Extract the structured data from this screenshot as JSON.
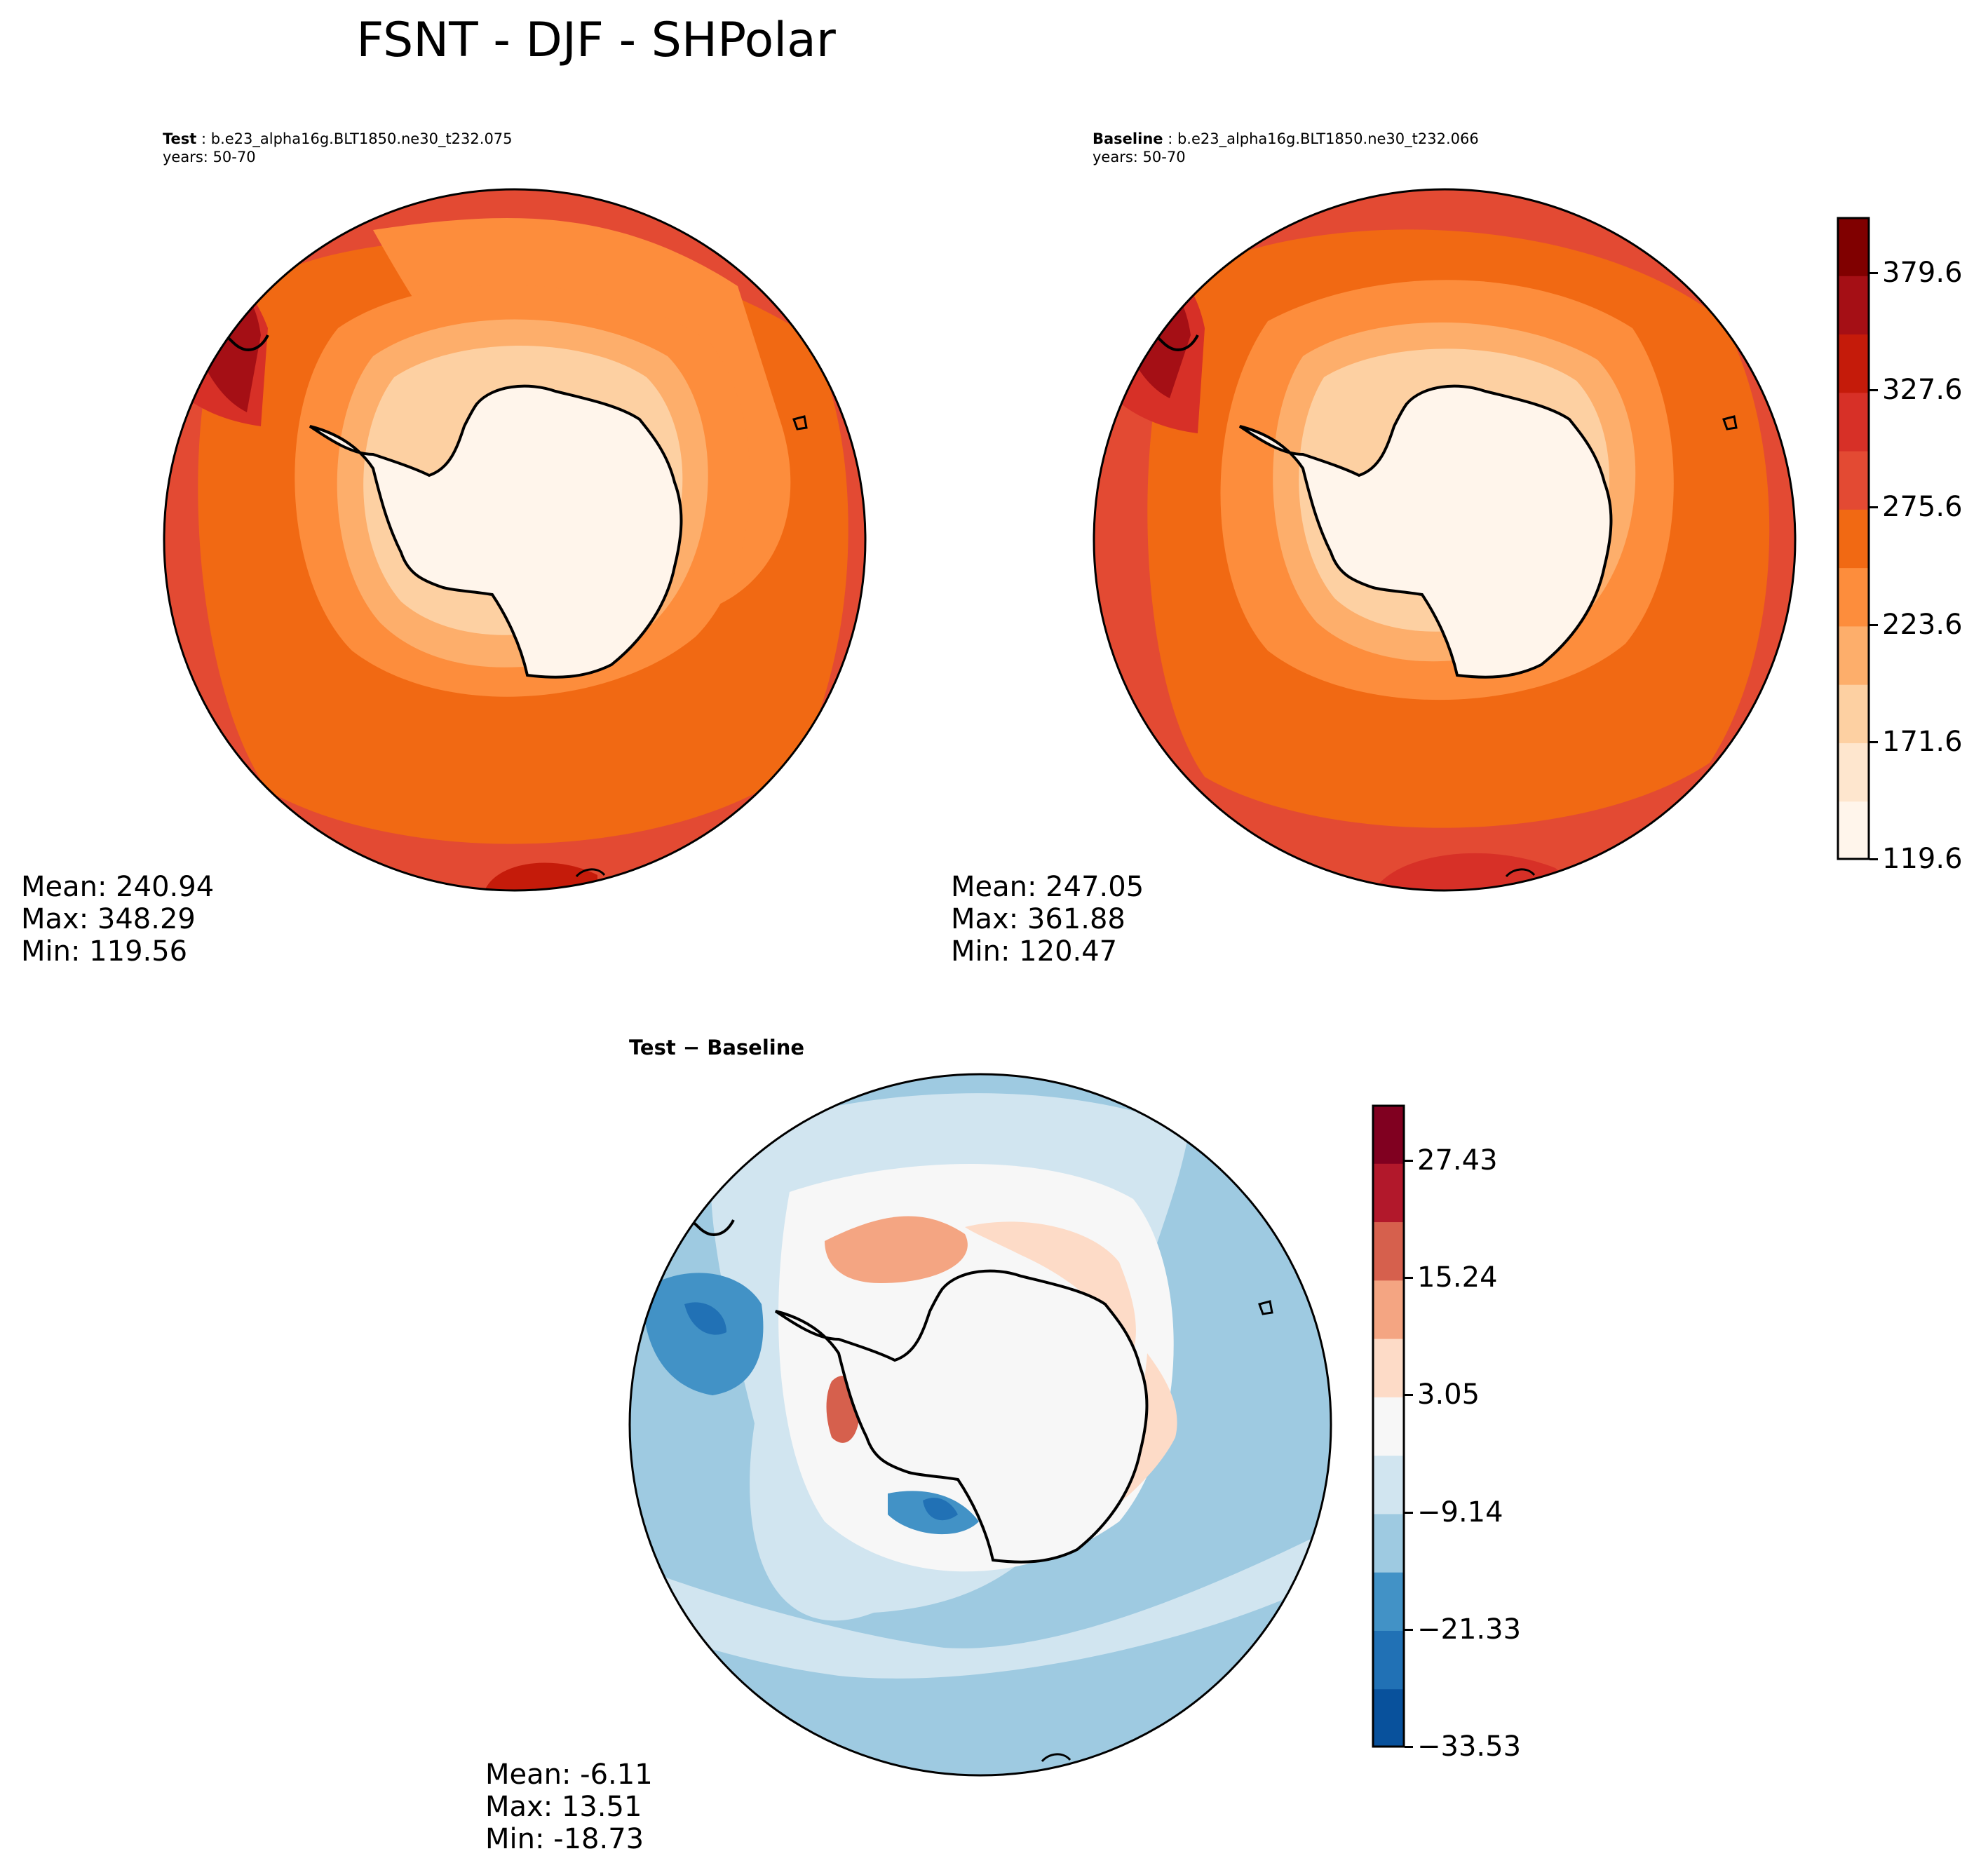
{
  "figure": {
    "title": "FSNT - DJF - SHPolar"
  },
  "panels": {
    "test": {
      "label_bold": "Test",
      "label_rest": " : b.e23_alpha16g.BLT1850.ne30_t232.075",
      "years": "years: 50-70",
      "mean": "Mean: 240.94",
      "max": "Max: 348.29",
      "min": "Min: 119.56"
    },
    "baseline": {
      "label_bold": "Baseline",
      "label_rest": " : b.e23_alpha16g.BLT1850.ne30_t232.066",
      "years": "years: 50-70",
      "mean": "Mean: 247.05",
      "max": "Max: 361.88",
      "min": "Min: 120.47"
    },
    "diff": {
      "label": "Test − Baseline",
      "mean": "Mean: -6.11",
      "max": "Max: 13.51",
      "min": "Min: -18.73"
    }
  },
  "colorbars": {
    "main": {
      "ticks": [
        "379.6",
        "327.6",
        "275.6",
        "223.6",
        "171.6",
        "119.6"
      ],
      "colors": [
        "#fff5eb",
        "#fee6ce",
        "#fdd0a2",
        "#fdae6b",
        "#fd8d3c",
        "#f16913",
        "#e34a33",
        "#d73027",
        "#c51b0a",
        "#a50f15",
        "#800000"
      ]
    },
    "diff": {
      "ticks": [
        "27.43",
        "15.24",
        "3.05",
        "−9.14",
        "−21.33",
        "−33.53"
      ],
      "colors": [
        "#08519c",
        "#2171b5",
        "#4292c6",
        "#9ecae1",
        "#d1e5f0",
        "#f7f7f7",
        "#fddbc7",
        "#f4a582",
        "#d6604d",
        "#b2182b",
        "#800020"
      ]
    }
  },
  "chart_data": [
    {
      "type": "heatmap",
      "title": "FSNT - DJF - SHPolar (Test)",
      "projection": "South Polar Stereographic",
      "variable": "FSNT",
      "season": "DJF",
      "region": "SHPolar",
      "case": "b.e23_alpha16g.BLT1850.ne30_t232.075",
      "years": "50-70",
      "stats": {
        "mean": 240.94,
        "max": 348.29,
        "min": 119.56
      },
      "colorbar_levels": [
        119.6,
        171.6,
        223.6,
        275.6,
        327.6,
        379.6
      ]
    },
    {
      "type": "heatmap",
      "title": "FSNT - DJF - SHPolar (Baseline)",
      "projection": "South Polar Stereographic",
      "variable": "FSNT",
      "season": "DJF",
      "region": "SHPolar",
      "case": "b.e23_alpha16g.BLT1850.ne30_t232.066",
      "years": "50-70",
      "stats": {
        "mean": 247.05,
        "max": 361.88,
        "min": 120.47
      },
      "colorbar_levels": [
        119.6,
        171.6,
        223.6,
        275.6,
        327.6,
        379.6
      ]
    },
    {
      "type": "heatmap",
      "title": "Test − Baseline",
      "projection": "South Polar Stereographic",
      "stats": {
        "mean": -6.11,
        "max": 13.51,
        "min": -18.73
      },
      "colorbar_levels": [
        -33.53,
        -21.33,
        -9.14,
        3.05,
        15.24,
        27.43
      ]
    }
  ]
}
